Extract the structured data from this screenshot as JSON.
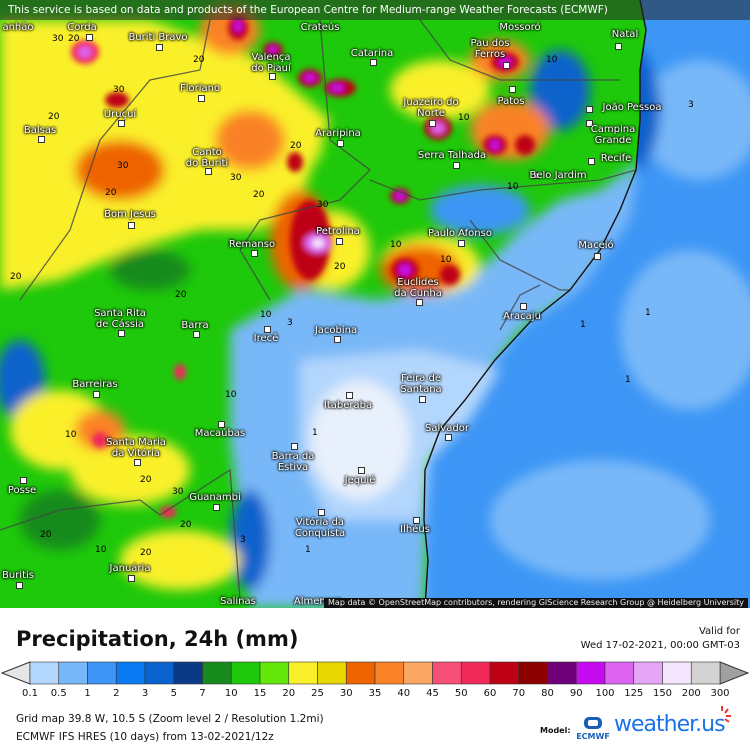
{
  "banner": "This service is based on data and products of the European Centre for Medium-range Weather Forecasts (ECMWF)",
  "attribution": "Map data © OpenStreetMap contributors, rendering GIScience Research Group @ Heidelberg University",
  "cities": [
    "Natal",
    "João Pessoa",
    "Campina\nGrande",
    "Recife",
    "Pau dos\nFerros",
    "Patos",
    "Catarina",
    "Juazeiro do\nNorte",
    "Valença\ndo Piauí",
    "Buriti Bravo",
    "Floriano",
    "Uruçuí",
    "Balsas",
    "Canto\ndo Buriti",
    "Araripina",
    "Serra Talhada",
    "Belo Jardim",
    "Petrolina",
    "Remanso",
    "Bom Jesus",
    "Paulo Afonso",
    "Euclides\nda Cunha",
    "Maceió",
    "Aracaju",
    "Santa Rita\nde Cássia",
    "Barra",
    "Irecê",
    "Jacobina",
    "Feira de\nSantana",
    "Itaberaba",
    "Salvador",
    "Barreiras",
    "Santa Maria\nda Vitória",
    "Macaúbas",
    "Barra da\nEstiva",
    "Jequié",
    "Guanambi",
    "Vitória da\nConquista",
    "Ilhéus",
    "Posse",
    "Januária",
    "Buritis",
    "Salinas",
    "Almenara",
    "Corda",
    "Crateús",
    "Mossoró",
    "anhão"
  ],
  "isolines": [
    "30",
    "20",
    "30",
    "20",
    "20",
    "30",
    "20",
    "30",
    "20",
    "20",
    "30",
    "20",
    "10",
    "10",
    "10",
    "10",
    "10",
    "20",
    "20",
    "10",
    "3",
    "1",
    "1",
    "1",
    "1",
    "3",
    "10",
    "20",
    "30",
    "10",
    "20",
    "10",
    "20",
    "20",
    "1",
    "3"
  ],
  "legend": {
    "title": "Precipitation, 24h (mm)",
    "valid_label": "Valid for",
    "valid_time": "Wed 17-02-2021, 00:00 GMT-03",
    "ticks": [
      "0.1",
      "0.5",
      "1",
      "2",
      "3",
      "5",
      "7",
      "10",
      "15",
      "20",
      "25",
      "30",
      "35",
      "40",
      "45",
      "50",
      "60",
      "70",
      "80",
      "90",
      "100",
      "125",
      "150",
      "200",
      "300"
    ],
    "colors": [
      "#b3d6fc",
      "#78b8f8",
      "#3d96f5",
      "#0a7af2",
      "#0a62cc",
      "#0a3a86",
      "#178a1e",
      "#1ec80a",
      "#64e60a",
      "#faf02a",
      "#e6d800",
      "#ee6400",
      "#fa8228",
      "#fca664",
      "#f65078",
      "#f0285a",
      "#be0014",
      "#8c0000",
      "#6e0078",
      "#c80af0",
      "#dc64f0",
      "#e6a6f8",
      "#f4e6fc",
      "#d2d2d2"
    ],
    "under_color": "#e6e6e6",
    "over_color": "#a0a0a0"
  },
  "footer": {
    "grid": "Grid map 39.8 W, 10.5 S (Zoom level 2 / Resolution 1.2mi)",
    "model_run": "ECMWF IFS HRES (10 days) from 13-02-2021/12z",
    "model_label": "Model:",
    "ecmwf_logo": "ECMWF",
    "brand": "weather.us"
  }
}
